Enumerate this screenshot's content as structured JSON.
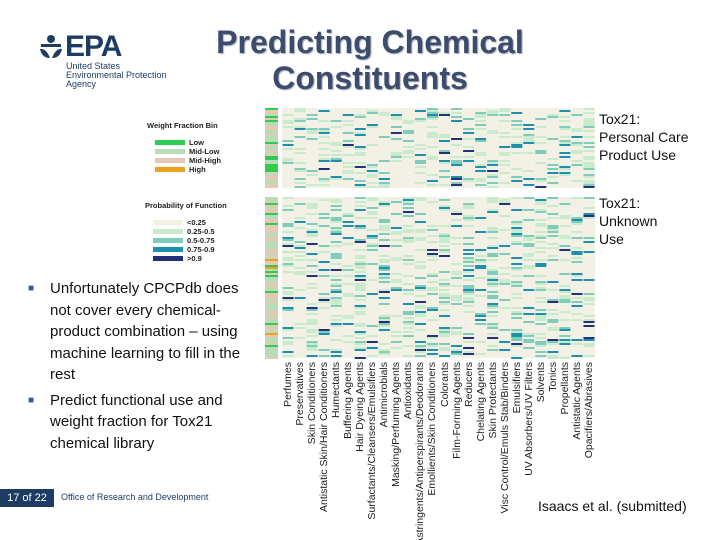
{
  "logo": {
    "text": "EPA",
    "lines": [
      "United States",
      "Environmental Protection",
      "Agency"
    ]
  },
  "title": {
    "line1": "Predicting Chemical",
    "line2": "Constituents"
  },
  "bullets": [
    "Unfortunately CPCPdb does not cover every chemical-product combination – using machine learning to fill in the rest",
    "Predict functional use and weight fraction for Tox21 chemical library"
  ],
  "footer": {
    "page": "17 of  22",
    "org": "Office of Research and Development"
  },
  "citation": "Isaacs et al. (submitted)",
  "heatmap": {
    "weight_legend": {
      "title": "Weight Fraction Bin",
      "items": [
        {
          "label": "Low",
          "color": "#2ecc52"
        },
        {
          "label": "Mid-Low",
          "color": "#b8dcb8"
        },
        {
          "label": "Mid-High",
          "color": "#e8c8b4"
        },
        {
          "label": "High",
          "color": "#f0a020"
        }
      ]
    },
    "prob_legend": {
      "title": "Probability of Function",
      "items": [
        {
          "label": "<0.25",
          "color": "#f3f1e6"
        },
        {
          "label": "0.25-0.5",
          "color": "#c8ebcc"
        },
        {
          "label": "0.5-0.75",
          "color": "#7ecdbb"
        },
        {
          "label": "0.75-0.9",
          "color": "#1f8fb0"
        },
        {
          "label": ">0.9",
          "color": "#23317a"
        }
      ]
    },
    "panels": [
      {
        "label_lines": [
          "Tox21:",
          "Personal Care",
          "Product Use"
        ]
      },
      {
        "label_lines": [
          "Tox21:",
          "Unknown",
          "Use"
        ]
      }
    ],
    "columns": [
      "Perfumes",
      "Preservatives",
      "Skin Conditioners",
      "Antistatic Skin/Hair Conditioners",
      "Humectants",
      "Buffering Agents",
      "Hair Dyeing Agents",
      "Surfactants/Cleansers/Emulsifiers",
      "Antimicrobials",
      "Masking/Perfuming Agents",
      "Antioxidants",
      "Astringents/Antiperspirants/Deodorants",
      "Emollients/Skin Conditioners",
      "Colorants",
      "Film-Forming Agents",
      "Reducers",
      "Chelating Agents",
      "Skin Protectants",
      "Visc Control/Emuls Stab/Binders",
      "Emulsifiers",
      "UV Absorbers/UV Filters",
      "Solvents",
      "Tonics",
      "Propellants",
      "Antistatic Agents",
      "Opacifiers/Abrasives"
    ]
  }
}
